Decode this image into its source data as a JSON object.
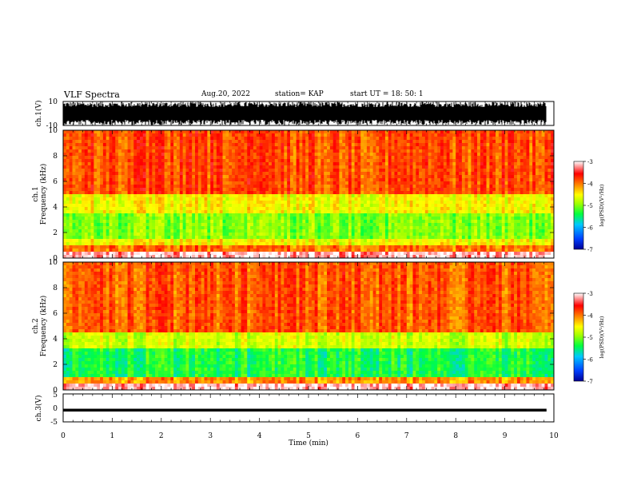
{
  "header": {
    "title": "VLF Spectra",
    "date": "Aug.20, 2022",
    "station": "station= KAP",
    "start": "start  UT  =   18: 50: 1"
  },
  "colors": {
    "background": "#ffffff",
    "axis": "#000000",
    "signal": "#000000"
  },
  "chart_data": [
    {
      "type": "line",
      "panel": "ch1-waveform",
      "ylabel": "ch.1(V)",
      "ylim": [
        -10,
        10
      ],
      "yticks": [
        "10",
        "-10"
      ],
      "xlim": [
        0,
        10
      ],
      "data_extent_min": [
        0,
        9.85
      ],
      "note_visible": "dense waveform saturating full range"
    },
    {
      "type": "heatmap",
      "panel": "ch1-spectrogram",
      "ylabel": "ch.1\nFrequency (kHz)",
      "ylabel_parts": [
        "ch.1",
        "Frequency (kHz)"
      ],
      "ylim": [
        0,
        10
      ],
      "yticks": [
        "0",
        "2",
        "4",
        "6",
        "8",
        "10"
      ],
      "xlim": [
        0,
        10
      ],
      "colorbar": {
        "label": "log(PSD)(V²/Hz)",
        "ticks": [
          "-3",
          "-4",
          "-5",
          "-6",
          "-7"
        ],
        "range": [
          -7,
          -3
        ],
        "colormap": [
          "#0000c8",
          "#0060ff",
          "#00c8ff",
          "#00ff50",
          "#a0ff00",
          "#ffff00",
          "#ff9000",
          "#ff0000",
          "#ffffff"
        ]
      },
      "bands_khz": [
        {
          "from": 0.0,
          "to": 0.4,
          "level": 0.05
        },
        {
          "from": 0.4,
          "to": 1.0,
          "level": 0.35
        },
        {
          "from": 1.0,
          "to": 1.5,
          "level": 0.55
        },
        {
          "from": 1.5,
          "to": 3.6,
          "level": 0.72
        },
        {
          "from": 3.6,
          "to": 5.0,
          "level": 0.55
        },
        {
          "from": 5.0,
          "to": 10.0,
          "level": 0.3
        }
      ]
    },
    {
      "type": "heatmap",
      "panel": "ch2-spectrogram",
      "ylabel": "ch.2\nFrequency (kHz)",
      "ylabel_parts": [
        "ch.2",
        "Frequency (kHz)"
      ],
      "ylim": [
        0,
        10
      ],
      "yticks": [
        "0",
        "2",
        "4",
        "6",
        "8",
        "10"
      ],
      "xlim": [
        0,
        10
      ],
      "colorbar": {
        "label": "log(PSD)(V²/Hz)",
        "ticks": [
          "-3",
          "-4",
          "-5",
          "-6",
          "-7"
        ],
        "range": [
          -7,
          -3
        ],
        "colormap": [
          "#0000c8",
          "#0060ff",
          "#00c8ff",
          "#00ff50",
          "#a0ff00",
          "#ffff00",
          "#ff9000",
          "#ff0000",
          "#ffffff"
        ]
      },
      "bands_khz": [
        {
          "from": 0.0,
          "to": 0.4,
          "level": 0.05
        },
        {
          "from": 0.4,
          "to": 1.0,
          "level": 0.4
        },
        {
          "from": 1.0,
          "to": 3.2,
          "level": 0.85
        },
        {
          "from": 3.2,
          "to": 4.5,
          "level": 0.62
        },
        {
          "from": 4.5,
          "to": 10.0,
          "level": 0.32
        }
      ]
    },
    {
      "type": "line",
      "panel": "ch3-waveform",
      "ylabel": "ch.3(V)",
      "ylim": [
        -5,
        5
      ],
      "yticks": [
        "5",
        "0",
        "-5"
      ],
      "xlim": [
        0,
        10
      ],
      "xlabel": "Time (min)",
      "xticks": [
        "0",
        "1",
        "2",
        "3",
        "4",
        "5",
        "6",
        "7",
        "8",
        "9",
        "10"
      ],
      "level_v": -0.8,
      "band_halfwidth_v": 0.5
    }
  ]
}
